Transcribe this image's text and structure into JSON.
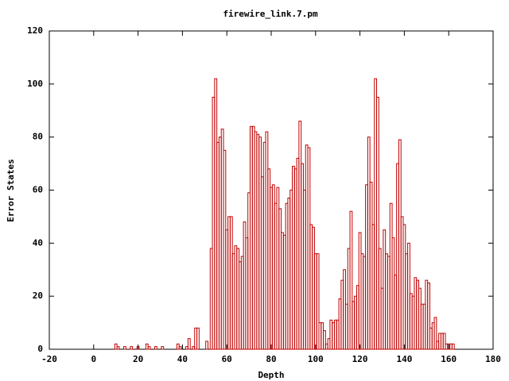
{
  "chart_data": {
    "type": "bar",
    "title": "firewire_link.7.pm",
    "x_label": "Depth",
    "y_label": "Error States",
    "x": [
      10,
      11,
      14,
      17,
      20,
      24,
      25,
      28,
      31,
      38,
      39,
      42,
      43,
      45,
      46,
      47,
      51,
      53,
      54,
      55,
      56,
      57,
      58,
      59,
      60,
      61,
      62,
      63,
      64,
      65,
      66,
      67,
      68,
      69,
      70,
      71,
      72,
      73,
      74,
      75,
      76,
      77,
      78,
      79,
      80,
      81,
      82,
      83,
      84,
      85,
      86,
      87,
      88,
      89,
      90,
      91,
      92,
      93,
      94,
      95,
      96,
      97,
      98,
      99,
      100,
      101,
      102,
      103,
      104,
      105,
      106,
      107,
      108,
      109,
      110,
      111,
      112,
      113,
      114,
      115,
      116,
      117,
      118,
      119,
      120,
      121,
      122,
      123,
      124,
      125,
      126,
      127,
      128,
      129,
      130,
      131,
      132,
      133,
      134,
      135,
      136,
      137,
      138,
      139,
      140,
      141,
      142,
      143,
      144,
      145,
      146,
      147,
      148,
      149,
      150,
      151,
      152,
      153,
      154,
      155,
      156,
      157,
      158,
      159,
      160,
      161,
      162
    ],
    "values": [
      2,
      1,
      1,
      1,
      1,
      2,
      1,
      1,
      1,
      2,
      1,
      1,
      4,
      1,
      8,
      8,
      3,
      38,
      95,
      102,
      78,
      80,
      83,
      75,
      45,
      50,
      50,
      36,
      39,
      38,
      33,
      35,
      48,
      42,
      59,
      84,
      84,
      82,
      81,
      80,
      65,
      78,
      82,
      68,
      61,
      62,
      55,
      61,
      53,
      44,
      43,
      55,
      57,
      60,
      69,
      68,
      72,
      86,
      70,
      60,
      77,
      76,
      47,
      46,
      36,
      36,
      10,
      10,
      7,
      2,
      4,
      11,
      10,
      11,
      11,
      19,
      26,
      30,
      17,
      38,
      52,
      18,
      20,
      24,
      44,
      36,
      35,
      62,
      80,
      63,
      47,
      102,
      95,
      38,
      23,
      45,
      36,
      35,
      55,
      42,
      28,
      70,
      79,
      50,
      47,
      36,
      40,
      21,
      20,
      27,
      26,
      23,
      17,
      17,
      26,
      25,
      8,
      10,
      12,
      3,
      6,
      6,
      6,
      2,
      2,
      2,
      2
    ],
    "color": "#c00000",
    "xlim": [
      -20,
      180
    ],
    "xticks": [
      -20,
      0,
      20,
      40,
      60,
      80,
      100,
      120,
      140,
      160,
      180
    ],
    "ylim": [
      0,
      120
    ],
    "yticks": [
      0,
      20,
      40,
      60,
      80,
      100,
      120
    ]
  }
}
